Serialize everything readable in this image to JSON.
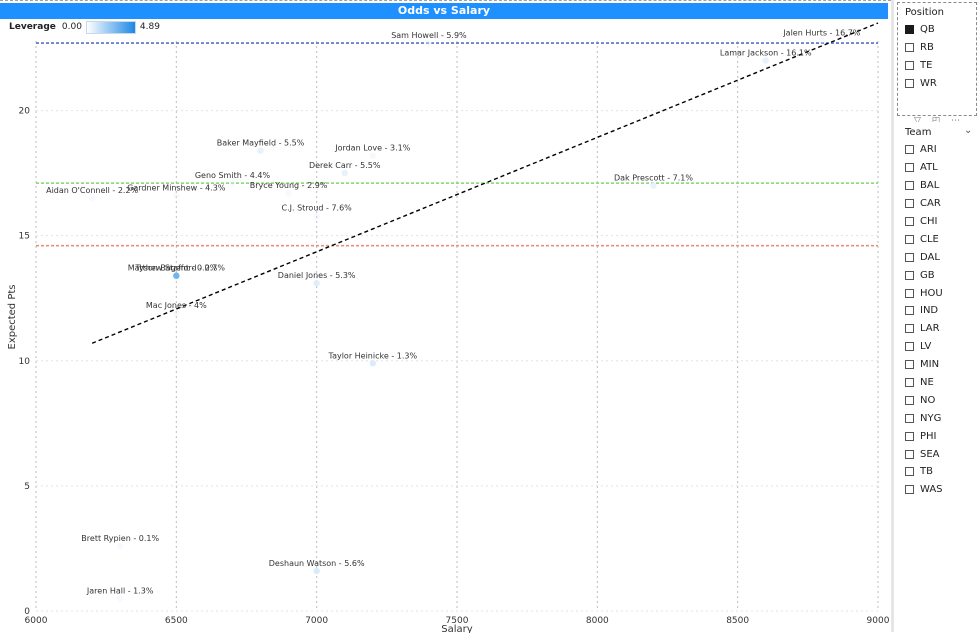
{
  "header": {
    "title": "Odds vs Salary"
  },
  "legend": {
    "label": "Leverage",
    "min": "0.00",
    "max": "4.89",
    "min_color": "#ffffff",
    "max_color": "#1e88e5"
  },
  "colors": {
    "title_bar": "#1e90ff",
    "top_line": "#5b6fc9",
    "mid_line": "#7fd66b",
    "low_line": "#e8907a",
    "trend": "#000000"
  },
  "chart_data": {
    "type": "scatter",
    "xlabel": "Salary",
    "ylabel": "Expected Pts",
    "xlim": [
      6000,
      9000
    ],
    "ylim": [
      0,
      23.5
    ],
    "xticks": [
      6000,
      6500,
      7000,
      7500,
      8000,
      8500,
      9000
    ],
    "yticks": [
      0,
      5,
      10,
      15,
      20
    ],
    "grid": "dotted",
    "points": [
      {
        "label": "Jalen Hurts - 16.7%",
        "x": 8800,
        "y": 22.8,
        "leverage": 0.0
      },
      {
        "label": "Lamar Jackson - 16.1%",
        "x": 8600,
        "y": 22.0,
        "leverage": 0.3
      },
      {
        "label": "Sam Howell - 5.9%",
        "x": 7400,
        "y": 22.7,
        "leverage": 0.0
      },
      {
        "label": "Jordan Love - 3.1%",
        "x": 7200,
        "y": 18.2,
        "leverage": 0.0
      },
      {
        "label": "Baker Mayfield - 5.5%",
        "x": 6800,
        "y": 18.4,
        "leverage": 0.6
      },
      {
        "label": "Derek Carr - 5.5%",
        "x": 7100,
        "y": 17.5,
        "leverage": 0.3
      },
      {
        "label": "Geno Smith - 4.4%",
        "x": 6700,
        "y": 17.1,
        "leverage": 0.0
      },
      {
        "label": "Bryce Young - 2.9%",
        "x": 6900,
        "y": 16.7,
        "leverage": 0.0
      },
      {
        "label": "Gardner Minshew - 4.3%",
        "x": 6500,
        "y": 16.6,
        "leverage": 0.0
      },
      {
        "label": "Aidan O'Connell - 2.2%",
        "x": 6200,
        "y": 16.5,
        "leverage": 0.0
      },
      {
        "label": "C.J. Stroud - 7.6%",
        "x": 7000,
        "y": 15.8,
        "leverage": 0.0
      },
      {
        "label": "Dak Prescott - 7.1%",
        "x": 8200,
        "y": 17.0,
        "leverage": 0.2
      },
      {
        "label": "Tyson Bagent - 0.2%",
        "x": 6500,
        "y": 13.4,
        "leverage": 4.89
      },
      {
        "label": "Matthew Stafford - 0.7%",
        "x": 6500,
        "y": 13.4,
        "leverage": 0.0
      },
      {
        "label": "Daniel Jones - 5.3%",
        "x": 7000,
        "y": 13.1,
        "leverage": 0.8
      },
      {
        "label": "Mac Jones - 4%",
        "x": 6500,
        "y": 11.9,
        "leverage": 0.0
      },
      {
        "label": "Taylor Heinicke - 1.3%",
        "x": 7200,
        "y": 9.9,
        "leverage": 0.9
      },
      {
        "label": "Brett Rypien - 0.1%",
        "x": 6300,
        "y": 2.6,
        "leverage": 0.0
      },
      {
        "label": "Deshaun Watson - 5.6%",
        "x": 7000,
        "y": 1.6,
        "leverage": 0.9
      },
      {
        "label": "Jaren Hall - 1.3%",
        "x": 6300,
        "y": 0.5,
        "leverage": 0.0
      }
    ],
    "reference_lines": [
      {
        "y": 22.7,
        "color": "#5b6fc9"
      },
      {
        "y": 17.1,
        "color": "#7fd66b"
      },
      {
        "y": 14.6,
        "color": "#e8907a"
      }
    ],
    "trend_line": {
      "x": [
        6200,
        9000
      ],
      "y": [
        10.7,
        23.5
      ]
    }
  },
  "position_slicer": {
    "title": "Position",
    "items": [
      {
        "label": "QB",
        "checked": true
      },
      {
        "label": "RB",
        "checked": false
      },
      {
        "label": "TE",
        "checked": false
      },
      {
        "label": "WR",
        "checked": false
      }
    ]
  },
  "team_slicer": {
    "title": "Team",
    "items": [
      "ARI",
      "ATL",
      "BAL",
      "CAR",
      "CHI",
      "CLE",
      "DAL",
      "GB",
      "HOU",
      "IND",
      "LAR",
      "LV",
      "MIN",
      "NE",
      "NO",
      "NYG",
      "PHI",
      "SEA",
      "TB",
      "WAS"
    ]
  }
}
